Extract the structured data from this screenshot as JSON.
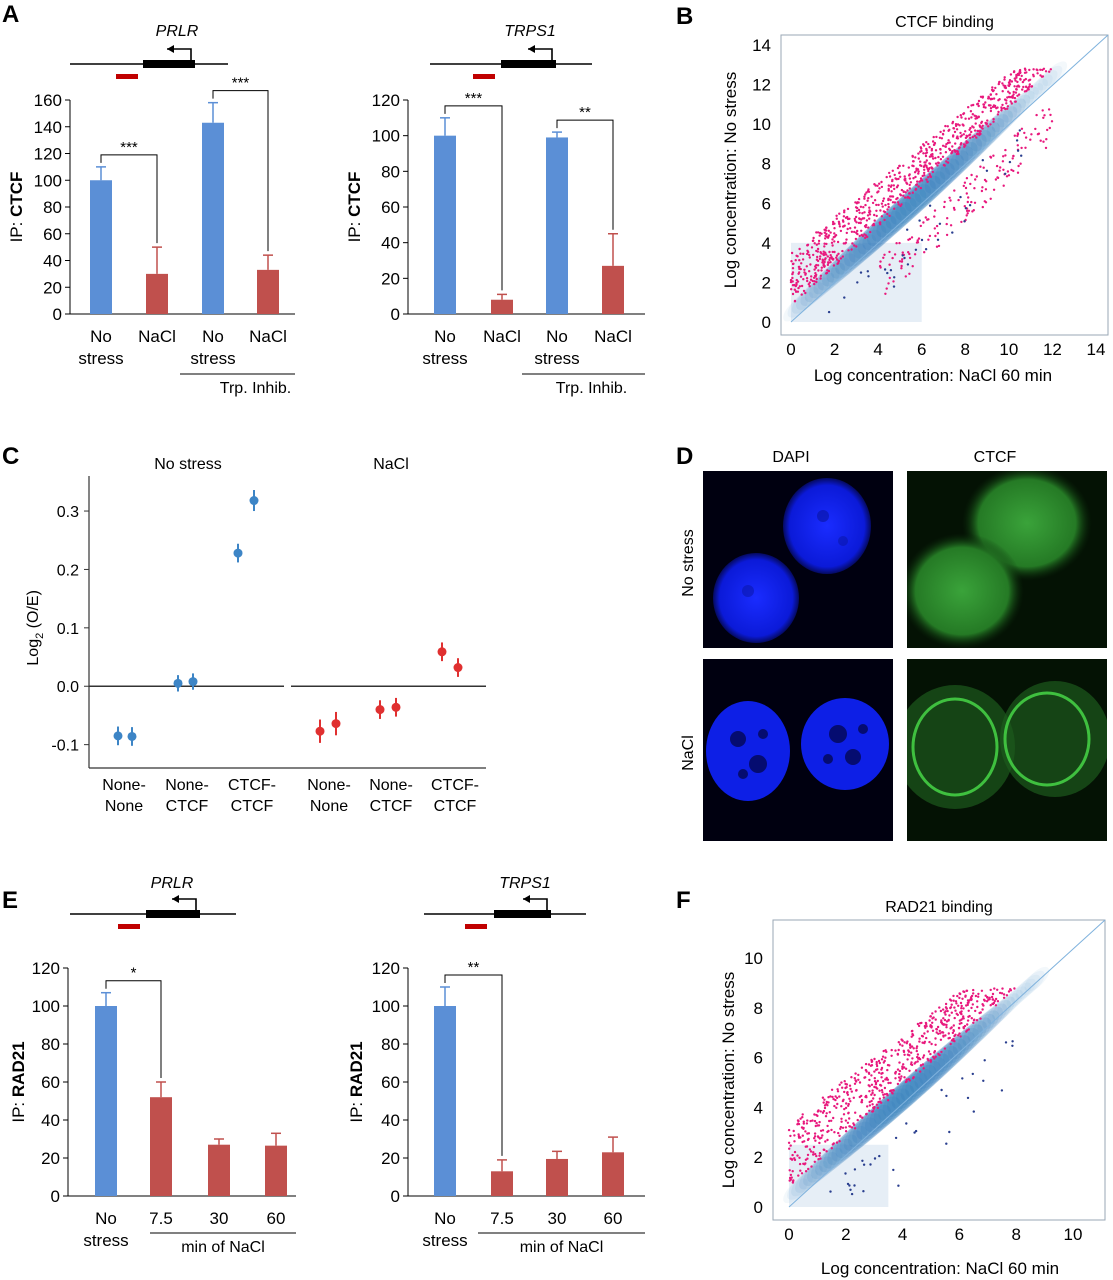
{
  "panels": {
    "a": "A",
    "b": "B",
    "c": "C",
    "d": "D",
    "e": "E",
    "f": "F"
  },
  "colors": {
    "blue": "#5b8fd6",
    "red": "#c0504d",
    "pink": "#e8197d",
    "navy": "#2a3f8f",
    "density": "#1f6fb4",
    "marker": "#c00000",
    "ptBlue": "#3d85c6",
    "ptRed": "#e03030"
  },
  "texts": {
    "stats_a1": [
      "***",
      "***"
    ],
    "stats_a2": [
      "***",
      "**"
    ],
    "stats_e1": [
      "*"
    ],
    "stats_e2": [
      "**"
    ],
    "cat_a": [
      "No\nstress",
      "NaCl",
      "No\nstress",
      "NaCl"
    ],
    "trp": "Trp. Inhib.",
    "cat_e": [
      "No\nstress",
      "7.5",
      "30",
      "60"
    ],
    "min_nacl": "min of NaCl"
  },
  "micro": {
    "cols": [
      "DAPI",
      "CTCF"
    ],
    "rows": [
      "No stress",
      "NaCl"
    ]
  },
  "chart_data": [
    {
      "id": "A1",
      "type": "bar",
      "gene": "PRLR",
      "ylabel_prefix": "IP: ",
      "ylabel_bold": "CTCF",
      "ylim": [
        0,
        160
      ],
      "yticks": [
        0,
        20,
        40,
        60,
        80,
        100,
        120,
        140,
        160
      ],
      "categories": [
        "No stress",
        "NaCl",
        "No stress",
        "NaCl"
      ],
      "values": [
        100,
        30,
        143,
        33
      ],
      "errors": [
        10,
        20,
        15,
        11
      ],
      "bar_colors": [
        "blue",
        "red",
        "blue",
        "red"
      ],
      "group_label": "Trp. Inhib.",
      "significance": [
        {
          "pair": [
            0,
            1
          ],
          "label": "***"
        },
        {
          "pair": [
            2,
            3
          ],
          "label": "***"
        }
      ]
    },
    {
      "id": "A2",
      "type": "bar",
      "gene": "TRPS1",
      "ylabel_prefix": "IP: ",
      "ylabel_bold": "CTCF",
      "ylim": [
        0,
        120
      ],
      "yticks": [
        0,
        20,
        40,
        60,
        80,
        100,
        120
      ],
      "categories": [
        "No stress",
        "NaCl",
        "No stress",
        "NaCl"
      ],
      "values": [
        100,
        8,
        99,
        27
      ],
      "errors": [
        10,
        3,
        3,
        18
      ],
      "bar_colors": [
        "blue",
        "red",
        "blue",
        "red"
      ],
      "group_label": "Trp. Inhib.",
      "significance": [
        {
          "pair": [
            0,
            1
          ],
          "label": "***"
        },
        {
          "pair": [
            2,
            3
          ],
          "label": "**"
        }
      ]
    },
    {
      "id": "B",
      "type": "scatter",
      "title": "CTCF binding",
      "xlabel": "Log concentration: NaCl 60 min",
      "ylabel": "Log concentration: No stress",
      "xlim": [
        0,
        14
      ],
      "ylim": [
        0,
        14
      ],
      "xticks": [
        0,
        2,
        4,
        6,
        8,
        10,
        12,
        14
      ],
      "yticks": [
        0,
        2,
        4,
        6,
        8,
        10,
        12,
        14
      ],
      "diagonal": true,
      "series": [
        {
          "color": "pink",
          "shape": "upper-wedge",
          "x_from": 0,
          "x_to": 13,
          "offset_range": [
            0.8,
            3.5
          ]
        },
        {
          "color": "pink",
          "shape": "lower-tail",
          "x_from": 4,
          "x_to": 12,
          "offset_range": [
            -3.0,
            -0.8
          ]
        },
        {
          "color": "density",
          "shape": "diagonal-cloud"
        }
      ]
    },
    {
      "id": "C",
      "type": "scatter",
      "ylabel": "Log2 (O/E)",
      "ylim": [
        -0.14,
        0.36
      ],
      "yticks": [
        -0.1,
        0.0,
        0.1,
        0.2,
        0.3
      ],
      "ytick_labels": [
        "-0.1",
        "0.0",
        "0.1",
        "0.2",
        "0.3"
      ],
      "groups": [
        "No stress",
        "NaCl"
      ],
      "categories": [
        "None-\nNone",
        "None-\nCTCF",
        "CTCF-\nCTCF",
        "None-\nNone",
        "None-\nCTCF",
        "CTCF-\nCTCF"
      ],
      "series": [
        {
          "name": "No stress",
          "color": "ptBlue",
          "points": [
            [
              -0.085,
              0.016
            ],
            [
              -0.086,
              0.016
            ],
            [
              0.005,
              0.014
            ],
            [
              0.008,
              0.014
            ],
            [
              0.228,
              0.016
            ],
            [
              0.318,
              0.018
            ]
          ]
        },
        {
          "name": "NaCl",
          "color": "ptRed",
          "points": [
            [
              -0.077,
              0.02
            ],
            [
              -0.064,
              0.02
            ],
            [
              -0.04,
              0.016
            ],
            [
              -0.036,
              0.016
            ],
            [
              0.059,
              0.016
            ],
            [
              0.032,
              0.016
            ]
          ]
        }
      ]
    },
    {
      "id": "E1",
      "type": "bar",
      "gene": "PRLR",
      "ylabel_prefix": "IP: ",
      "ylabel_bold": "RAD21",
      "ylim": [
        0,
        120
      ],
      "yticks": [
        0,
        20,
        40,
        60,
        80,
        100,
        120
      ],
      "categories": [
        "No stress",
        "7.5",
        "30",
        "60"
      ],
      "values": [
        100,
        52,
        27,
        26.5
      ],
      "errors": [
        7,
        8,
        3,
        6.5
      ],
      "bar_colors": [
        "blue",
        "red",
        "red",
        "red"
      ],
      "group_label": "min of NaCl",
      "significance": [
        {
          "pair": [
            0,
            1
          ],
          "label": "*"
        }
      ]
    },
    {
      "id": "E2",
      "type": "bar",
      "gene": "TRPS1",
      "ylabel_prefix": "IP: ",
      "ylabel_bold": "RAD21",
      "ylim": [
        0,
        120
      ],
      "yticks": [
        0,
        20,
        40,
        60,
        80,
        100,
        120
      ],
      "categories": [
        "No stress",
        "7.5",
        "30",
        "60"
      ],
      "values": [
        100,
        13,
        19.5,
        23
      ],
      "errors": [
        10,
        6,
        4,
        8
      ],
      "bar_colors": [
        "blue",
        "red",
        "red",
        "red"
      ],
      "group_label": "min of NaCl",
      "significance": [
        {
          "pair": [
            0,
            1
          ],
          "label": "**"
        }
      ]
    },
    {
      "id": "F",
      "type": "scatter",
      "title": "RAD21 binding",
      "xlabel": "Log concentration: NaCl 60 min",
      "ylabel": "Log concentration: No stress",
      "xlim": [
        0,
        10
      ],
      "ylim": [
        0,
        10
      ],
      "xticks": [
        0,
        2,
        4,
        6,
        8,
        10
      ],
      "yticks": [
        0,
        2,
        4,
        6,
        8,
        10
      ],
      "diagonal": true,
      "series": [
        {
          "color": "pink",
          "shape": "upper-wedge",
          "x_from": 0,
          "x_to": 9.5,
          "offset_range": [
            0.8,
            3.4
          ]
        },
        {
          "color": "density",
          "shape": "diagonal-cloud"
        }
      ]
    }
  ]
}
